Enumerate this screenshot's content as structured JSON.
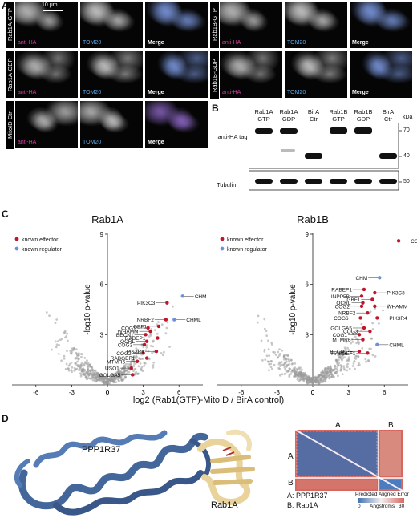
{
  "panelA": {
    "label": "A",
    "scale_bar": "10 μm",
    "rows_left": [
      "Rab1A-GTP",
      "Rab1A-GDP",
      "MitoID Ctr"
    ],
    "rows_right": [
      "Rab1B-GTP",
      "Rab1B-GDP"
    ],
    "tiles": [
      "anti-HA",
      "TOM20",
      "Merge"
    ]
  },
  "panelB": {
    "label": "B",
    "lanes": [
      {
        "l1": "Rab1A",
        "l2": "GTP"
      },
      {
        "l1": "Rab1A",
        "l2": "GDP"
      },
      {
        "l1": "BirA",
        "l2": "Ctr"
      },
      {
        "l1": "Rab1B",
        "l2": "GTP"
      },
      {
        "l1": "Rab1B",
        "l2": "GDP"
      },
      {
        "l1": "BirA",
        "l2": "Ctr"
      }
    ],
    "unit": "kDa",
    "blot1_label": "anti-HA tag",
    "blot2_label": "Tubulin",
    "markers1": [
      "70",
      "40"
    ],
    "markers2": [
      "50"
    ]
  },
  "panelC": {
    "label": "C",
    "legend_effector": "known effector",
    "legend_regulator": "known regulator",
    "xlabel": "log2 (Rab1(GTP)-MitoID / BirA control)",
    "ylabel": "-log10 p-value",
    "colors": {
      "effector": "#c0152a",
      "regulator": "#6f90d8",
      "background": "#9a9a9a"
    },
    "chart_data": [
      {
        "type": "scatter",
        "title": "Rab1A",
        "xlim": [
          -8,
          8
        ],
        "ylim": [
          0,
          9
        ],
        "xticks": [
          "-6",
          "-3",
          "0",
          "3",
          "6"
        ],
        "yticks": [
          "3",
          "6",
          "9"
        ],
        "highlights": [
          {
            "name": "CHM",
            "x": 6.3,
            "y": 5.3,
            "kind": "regulator"
          },
          {
            "name": "PIK3C3",
            "x": 5.0,
            "y": 4.9,
            "kind": "effector"
          },
          {
            "name": "CHML",
            "x": 5.6,
            "y": 3.9,
            "kind": "regulator"
          },
          {
            "name": "NRBF2",
            "x": 4.9,
            "y": 3.9,
            "kind": "effector"
          },
          {
            "name": "GBF1",
            "x": 4.3,
            "y": 3.5,
            "kind": "effector"
          },
          {
            "name": "COG1",
            "x": 3.4,
            "y": 3.4,
            "kind": "effector"
          },
          {
            "name": "WHAMM",
            "x": 3.6,
            "y": 3.2,
            "kind": "effector"
          },
          {
            "name": "BECN1",
            "x": 3.2,
            "y": 3.0,
            "kind": "effector"
          },
          {
            "name": "RABEP1",
            "x": 4.2,
            "y": 2.8,
            "kind": "effector"
          },
          {
            "name": "OCRL",
            "x": 3.3,
            "y": 2.6,
            "kind": "effector"
          },
          {
            "name": "COG3",
            "x": 3.1,
            "y": 2.4,
            "kind": "effector"
          },
          {
            "name": "COG2",
            "x": 3.0,
            "y": 1.9,
            "kind": "effector"
          },
          {
            "name": "PIK3R4",
            "x": 4.1,
            "y": 2.0,
            "kind": "effector"
          },
          {
            "name": "RABGEF1",
            "x": 3.3,
            "y": 1.6,
            "kind": "effector"
          },
          {
            "name": "MTMR6",
            "x": 2.5,
            "y": 1.4,
            "kind": "effector"
          },
          {
            "name": "USO1",
            "x": 2.0,
            "y": 1.0,
            "kind": "effector"
          },
          {
            "name": "GOLGA5",
            "x": 2.1,
            "y": 0.6,
            "kind": "effector"
          }
        ]
      },
      {
        "type": "scatter",
        "title": "Rab1B",
        "xlim": [
          -8,
          8
        ],
        "ylim": [
          0,
          9
        ],
        "xticks": [
          "-6",
          "-3",
          "0",
          "3",
          "6"
        ],
        "yticks": [
          "3",
          "6",
          "9"
        ],
        "highlights": [
          {
            "name": "COG4",
            "x": 7.2,
            "y": 8.6,
            "kind": "effector"
          },
          {
            "name": "CHM",
            "x": 5.6,
            "y": 6.4,
            "kind": "regulator"
          },
          {
            "name": "RABEP1",
            "x": 4.3,
            "y": 5.7,
            "kind": "effector"
          },
          {
            "name": "PIK3C3",
            "x": 5.2,
            "y": 5.5,
            "kind": "effector"
          },
          {
            "name": "INPP5B",
            "x": 4.1,
            "y": 5.3,
            "kind": "effector"
          },
          {
            "name": "GBF1",
            "x": 5.0,
            "y": 5.1,
            "kind": "effector"
          },
          {
            "name": "OCRL",
            "x": 4.2,
            "y": 4.9,
            "kind": "effector"
          },
          {
            "name": "WHAMM",
            "x": 5.2,
            "y": 4.7,
            "kind": "effector"
          },
          {
            "name": "COG2",
            "x": 4.1,
            "y": 4.7,
            "kind": "effector"
          },
          {
            "name": "NRBF2",
            "x": 4.6,
            "y": 4.3,
            "kind": "effector"
          },
          {
            "name": "COG6",
            "x": 4.0,
            "y": 4.0,
            "kind": "effector"
          },
          {
            "name": "PIK3R4",
            "x": 5.4,
            "y": 4.0,
            "kind": "effector"
          },
          {
            "name": "GOLGA5",
            "x": 4.3,
            "y": 3.4,
            "kind": "effector"
          },
          {
            "name": "COG3",
            "x": 4.8,
            "y": 3.2,
            "kind": "effector"
          },
          {
            "name": "COG1",
            "x": 3.9,
            "y": 3.0,
            "kind": "effector"
          },
          {
            "name": "MTMR6",
            "x": 4.2,
            "y": 2.7,
            "kind": "effector"
          },
          {
            "name": "CHML",
            "x": 5.4,
            "y": 2.4,
            "kind": "regulator"
          },
          {
            "name": "BECN1",
            "x": 3.9,
            "y": 2.0,
            "kind": "effector"
          },
          {
            "name": "RABGEF1",
            "x": 4.6,
            "y": 1.9,
            "kind": "effector"
          }
        ]
      }
    ]
  },
  "panelD": {
    "label": "D",
    "protein_a": "PPP1R37",
    "protein_b": "Rab1A",
    "pae_title": "Predicted Aligned Error",
    "pae_unit": "Angstroms",
    "pae_min": "0",
    "pae_max": "30",
    "chain_a": "A",
    "chain_b": "B",
    "legend_a": "A: PPP1R37",
    "legend_b": "B: Rab1A",
    "colors": {
      "ppp1r37": "#3a5f96",
      "rab1a": "#e9d39b",
      "pae_low": "#3e6fb0",
      "pae_high": "#d9675f"
    }
  }
}
